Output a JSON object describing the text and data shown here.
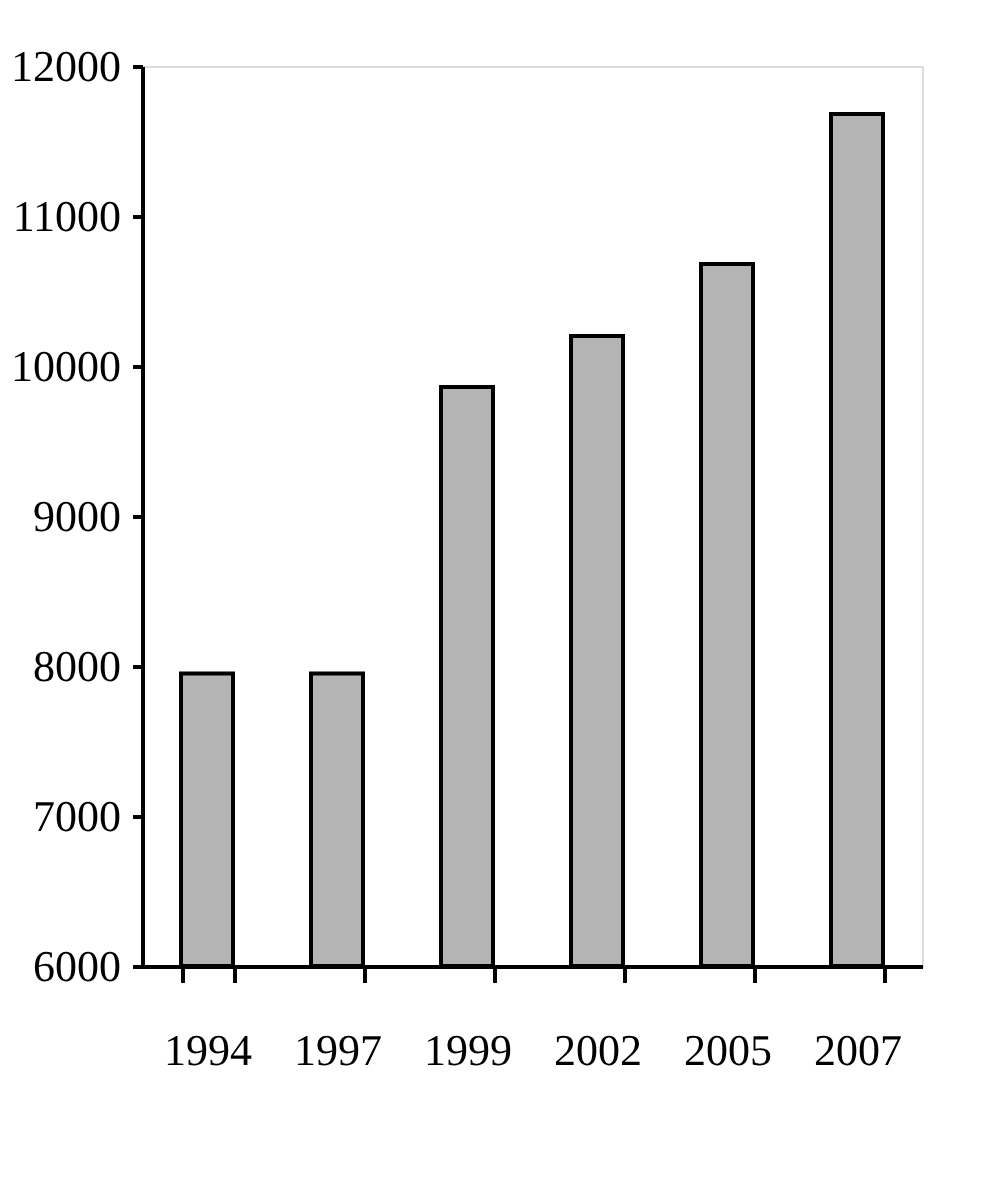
{
  "chart_data": {
    "type": "bar",
    "categories": [
      "1994",
      "1997",
      "1999",
      "2002",
      "2005",
      "2007"
    ],
    "values": [
      7950,
      7950,
      9860,
      10200,
      10680,
      11680
    ],
    "color": "#b4b4b4",
    "ylim": [
      6000,
      12000
    ],
    "yticks": [
      6000,
      7000,
      8000,
      9000,
      10000,
      11000,
      12000
    ],
    "grid": false
  }
}
